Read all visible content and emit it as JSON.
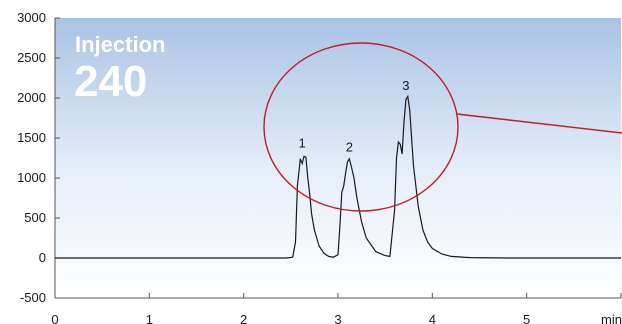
{
  "chart_data": {
    "type": "line",
    "annotation": {
      "line1": "Injection",
      "line2": "240"
    },
    "x_ticks": [
      "0",
      "1",
      "2",
      "3",
      "4",
      "5",
      "min"
    ],
    "y_ticks": [
      "3000",
      "2500",
      "2000",
      "1500",
      "1000",
      "500",
      "0",
      "-500"
    ],
    "xlim": [
      0,
      6
    ],
    "ylim": [
      -500,
      3000
    ],
    "peak_labels": [
      {
        "text": "1",
        "x": 2.62,
        "y": 1280
      },
      {
        "text": "2",
        "x": 3.12,
        "y": 1230
      },
      {
        "text": "3",
        "x": 3.72,
        "y": 2000
      }
    ],
    "series": [
      {
        "x": [
          0,
          1,
          2,
          2.45,
          2.52,
          2.55,
          2.57,
          2.6,
          2.62,
          2.64,
          2.66,
          2.68,
          2.7,
          2.72,
          2.75,
          2.8,
          2.85,
          2.9,
          2.95,
          3.0,
          3.02,
          3.04,
          3.06,
          3.08,
          3.1,
          3.12,
          3.14,
          3.17,
          3.2,
          3.25,
          3.3,
          3.4,
          3.5,
          3.55,
          3.6,
          3.62,
          3.64,
          3.66,
          3.68,
          3.7,
          3.72,
          3.74,
          3.76,
          3.78,
          3.8,
          3.85,
          3.9,
          3.95,
          4.0,
          4.1,
          4.2,
          4.4,
          4.8,
          5.0,
          6.0
        ],
        "y": [
          0,
          0,
          0,
          0,
          10,
          200,
          900,
          1240,
          1180,
          1270,
          1260,
          1000,
          800,
          550,
          350,
          150,
          60,
          20,
          10,
          40,
          400,
          820,
          900,
          1050,
          1200,
          1240,
          1150,
          1000,
          750,
          450,
          250,
          80,
          30,
          20,
          600,
          1250,
          1450,
          1420,
          1300,
          1700,
          1980,
          2020,
          1850,
          1500,
          1150,
          650,
          350,
          200,
          120,
          50,
          20,
          5,
          0,
          0,
          0
        ]
      }
    ],
    "colors": {
      "line": "#1a1a1a",
      "circle": "#c01c2a",
      "bg_top": "#a9c3e4",
      "bg_bottom": "#ffffff",
      "axis": "#555555"
    }
  }
}
